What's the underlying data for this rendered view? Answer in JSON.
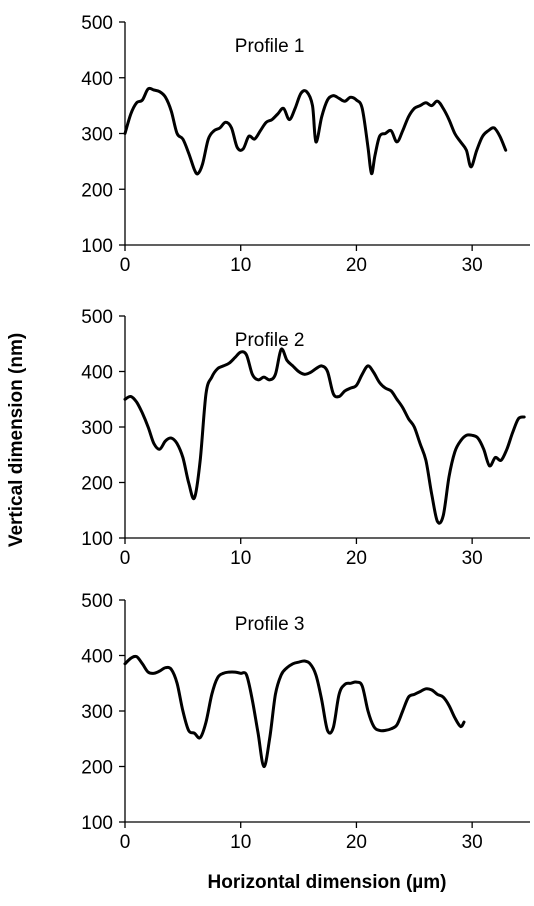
{
  "chart_data": {
    "ylabel": "Vertical dimension (nm)",
    "xlabel": "Horizontal dimension (µm)",
    "panels": [
      {
        "type": "line",
        "title": "Profile 1",
        "xlim": [
          0,
          35
        ],
        "ylim": [
          100,
          500
        ],
        "x_ticks": [
          0,
          10,
          20,
          30
        ],
        "y_ticks": [
          100,
          200,
          300,
          400,
          500
        ],
        "series": [
          {
            "x": [
              0,
              0.5,
              1,
              1.5,
              2,
              2.5,
              3,
              3.5,
              4,
              4.5,
              5,
              5.5,
              6,
              6.3,
              6.7,
              7.2,
              7.7,
              8.2,
              8.7,
              9.2,
              9.7,
              10.2,
              10.7,
              11.2,
              11.7,
              12.2,
              12.7,
              13.2,
              13.7,
              14.2,
              14.7,
              15.2,
              15.7,
              16.2,
              16.5,
              17,
              17.5,
              18,
              18.5,
              19,
              19.5,
              20,
              20.5,
              21,
              21.3,
              21.6,
              22,
              22.5,
              23,
              23.5,
              24,
              24.5,
              25,
              25.5,
              26,
              26.5,
              27,
              27.5,
              28,
              28.5,
              29,
              29.5,
              29.9,
              30.4,
              30.9,
              31.4,
              31.9,
              32.4,
              32.9
            ],
            "y": [
              300,
              335,
              355,
              360,
              380,
              378,
              375,
              365,
              340,
              300,
              290,
              265,
              235,
              228,
              245,
              290,
              305,
              310,
              320,
              310,
              275,
              272,
              295,
              290,
              305,
              320,
              325,
              335,
              345,
              325,
              345,
              372,
              375,
              350,
              285,
              330,
              360,
              368,
              363,
              358,
              365,
              360,
              345,
              275,
              228,
              260,
              295,
              300,
              305,
              285,
              305,
              330,
              345,
              350,
              355,
              350,
              358,
              345,
              325,
              300,
              285,
              270,
              240,
              270,
              295,
              305,
              310,
              295,
              270
            ]
          }
        ]
      },
      {
        "type": "line",
        "title": "Profile 2",
        "xlim": [
          0,
          35
        ],
        "ylim": [
          100,
          500
        ],
        "x_ticks": [
          0,
          10,
          20,
          30
        ],
        "y_ticks": [
          100,
          200,
          300,
          400,
          500
        ],
        "series": [
          {
            "x": [
              0,
              0.5,
              1,
              1.5,
              2,
              2.5,
              3,
              3.5,
              4,
              4.5,
              5,
              5.5,
              6,
              6.5,
              7,
              7.5,
              8,
              8.5,
              9,
              9.5,
              10,
              10.5,
              11,
              11.5,
              12,
              12.5,
              13,
              13.5,
              14,
              14.5,
              15,
              15.5,
              16,
              16.5,
              17,
              17.5,
              18,
              18.5,
              19,
              19.5,
              20,
              20.5,
              21,
              21.5,
              22,
              22.5,
              23,
              23.5,
              24,
              24.5,
              25,
              25.5,
              26,
              26.5,
              27,
              27.5,
              28,
              28.5,
              29,
              29.5,
              30,
              30.5,
              31,
              31.5,
              32,
              32.5,
              33,
              33.5,
              34,
              34.5
            ],
            "y": [
              350,
              355,
              345,
              325,
              300,
              270,
              260,
              275,
              280,
              270,
              245,
              200,
              172,
              240,
              360,
              390,
              405,
              410,
              415,
              425,
              435,
              430,
              395,
              385,
              390,
              385,
              395,
              440,
              420,
              410,
              400,
              395,
              398,
              405,
              410,
              400,
              360,
              355,
              365,
              370,
              375,
              395,
              410,
              398,
              380,
              370,
              365,
              350,
              335,
              315,
              300,
              270,
              240,
              180,
              130,
              140,
              210,
              255,
              275,
              285,
              285,
              280,
              260,
              230,
              245,
              240,
              260,
              290,
              315,
              318
            ]
          }
        ]
      },
      {
        "type": "line",
        "title": "Profile 3",
        "xlim": [
          0,
          35
        ],
        "ylim": [
          100,
          500
        ],
        "x_ticks": [
          0,
          10,
          20,
          30
        ],
        "y_ticks": [
          100,
          200,
          300,
          400,
          500
        ],
        "series": [
          {
            "x": [
              0,
              0.5,
              1,
              1.5,
              2,
              2.5,
              3,
              3.5,
              4,
              4.5,
              5,
              5.5,
              6,
              6.5,
              7,
              7.5,
              8,
              8.5,
              9,
              9.5,
              10,
              10.5,
              11,
              11.5,
              12,
              12.5,
              13,
              13.5,
              14,
              14.5,
              15,
              15.5,
              16,
              16.5,
              17,
              17.5,
              18,
              18.5,
              19,
              19.5,
              20,
              20.5,
              21,
              21.5,
              22,
              22.5,
              23,
              23.5,
              24,
              24.5,
              25,
              25.5,
              26,
              26.5,
              27,
              27.5,
              28,
              28.5,
              29,
              29.3
            ],
            "y": [
              385,
              395,
              398,
              385,
              370,
              368,
              372,
              378,
              375,
              350,
              300,
              265,
              260,
              252,
              280,
              330,
              360,
              368,
              370,
              370,
              368,
              365,
              320,
              260,
              200,
              250,
              330,
              365,
              378,
              385,
              388,
              390,
              385,
              365,
              320,
              265,
              270,
              330,
              348,
              350,
              352,
              345,
              300,
              272,
              265,
              265,
              268,
              275,
              300,
              325,
              330,
              335,
              340,
              338,
              330,
              325,
              310,
              288,
              272,
              280
            ]
          }
        ]
      }
    ]
  }
}
